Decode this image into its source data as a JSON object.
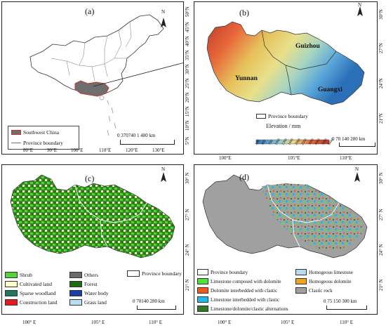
{
  "panels": {
    "a": {
      "label": "(a)",
      "legend": [
        "Southwest China",
        "Province boundary"
      ],
      "scale": "0  370740   1 480 km",
      "lon_ticks": [
        "80°E",
        "90°E",
        "100°E",
        "110°E",
        "120°E",
        "130°E"
      ],
      "lat_ticks": [
        "50°N",
        "45°N",
        "40°N",
        "35°N",
        "30°N",
        "25°N",
        "20°N",
        "15°N",
        "10°N",
        "5°N"
      ],
      "north": "N"
    },
    "b": {
      "label": "(b)",
      "places": [
        "Guizhou",
        "Yunnan",
        "Guangxi"
      ],
      "legend_boundary": "Province boundary",
      "elevation_title": "Elevation / mm",
      "elevation_breaks": [
        "100",
        "400",
        "700",
        "1000",
        "1300",
        "1600",
        "2000",
        "2500",
        "3000",
        "4000",
        "5000",
        "6444"
      ],
      "scale": "0  70 140      280 km",
      "lon_ticks": [
        "100°E",
        "105°E",
        "110°E"
      ],
      "lat_ticks": [
        "30°N",
        "27°N",
        "24°N",
        "21°N"
      ],
      "north": "N"
    },
    "c": {
      "label": "(c)",
      "legend": [
        "Shrub",
        "Cultivated land",
        "Sparse woodland",
        "Construction land",
        "Others",
        "Forest",
        "Water body",
        "Grass land"
      ],
      "legend_boundary": "Province boundary",
      "scale": "0  70140     280 km",
      "lon_ticks": [
        "100° E",
        "105° E",
        "110° E"
      ],
      "lat_ticks": [
        "30° N",
        "27° N",
        "24° N",
        "21° N"
      ],
      "north": "N"
    },
    "d": {
      "label": "(d)",
      "legend": [
        "Province boundary",
        "Limestone composed with dolomite",
        "Dolomite interbedded with clastic",
        "Limestone interbedded with clastic",
        "Limestone/dolomite/clastic alternations",
        "Homogeous limestone",
        "Homogeous dolomite",
        "Clastic rock"
      ],
      "scale": "0   75 150      300 km",
      "lon_ticks": [
        "100° E",
        "105° E",
        "110° E"
      ],
      "lat_ticks": [
        "30° N",
        "27° N",
        "24° N",
        "21° N"
      ],
      "north": "N"
    }
  },
  "colors": {
    "southwest": "#6e6e6e",
    "shrub": "#55d13a",
    "cultivated": "#fffbc4",
    "sparse": "#1e7a5a",
    "construction": "#e41a1c",
    "others": "#6b6b6b",
    "forest": "#1f6b12",
    "water": "#1a3ea8",
    "grass": "#b9ddf2",
    "lime_dolo": "#4de33a",
    "dolo_clastic": "#f05a14",
    "lime_clastic": "#21b9e8",
    "alternations": "#2f7a22",
    "homo_lime": "#b8dbef",
    "homo_dolo": "#f2a21b",
    "clastic": "#a0a0a0"
  }
}
